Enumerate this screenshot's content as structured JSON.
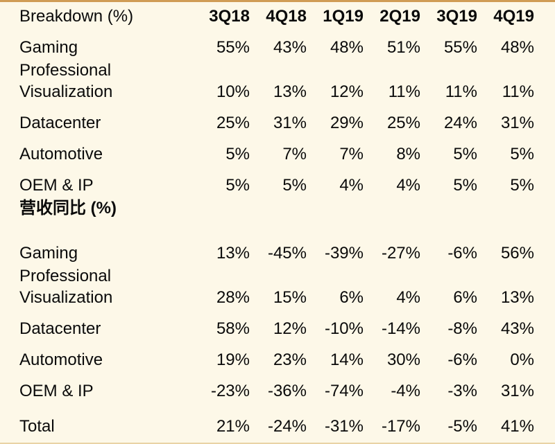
{
  "chart_data": {
    "type": "table",
    "title": "Breakdown (%)",
    "columns": [
      "3Q18",
      "4Q18",
      "1Q19",
      "2Q19",
      "3Q19",
      "4Q19"
    ],
    "sections": [
      {
        "header": "Breakdown (%)",
        "rows": [
          {
            "label": "Gaming",
            "values": [
              "55%",
              "43%",
              "48%",
              "51%",
              "55%",
              "48%"
            ]
          },
          {
            "label": "Professional Visualization",
            "label_lines": [
              "Professional",
              "Visualization"
            ],
            "values": [
              "10%",
              "13%",
              "12%",
              "11%",
              "11%",
              "11%"
            ]
          },
          {
            "label": "Datacenter",
            "values": [
              "25%",
              "31%",
              "29%",
              "25%",
              "24%",
              "31%"
            ]
          },
          {
            "label": "Automotive",
            "values": [
              "5%",
              "7%",
              "7%",
              "8%",
              "5%",
              "5%"
            ]
          },
          {
            "label": "OEM & IP",
            "values": [
              "5%",
              "5%",
              "4%",
              "4%",
              "5%",
              "5%"
            ]
          }
        ]
      },
      {
        "header": "营收同比 (%)",
        "rows": [
          {
            "label": "Gaming",
            "values": [
              "13%",
              "-45%",
              "-39%",
              "-27%",
              "-6%",
              "56%"
            ]
          },
          {
            "label": "Professional Visualization",
            "label_lines": [
              "Professional",
              "Visualization"
            ],
            "values": [
              "28%",
              "15%",
              "6%",
              "4%",
              "6%",
              "13%"
            ]
          },
          {
            "label": "Datacenter",
            "values": [
              "58%",
              "12%",
              "-10%",
              "-14%",
              "-8%",
              "43%"
            ]
          },
          {
            "label": "Automotive",
            "values": [
              "19%",
              "23%",
              "14%",
              "30%",
              "-6%",
              "0%"
            ]
          },
          {
            "label": "OEM & IP",
            "values": [
              "-23%",
              "-36%",
              "-74%",
              "-4%",
              "-3%",
              "31%"
            ]
          },
          {
            "label": "Total",
            "is_total": true,
            "values": [
              "21%",
              "-24%",
              "-31%",
              "-17%",
              "-5%",
              "41%"
            ]
          }
        ]
      }
    ],
    "colors": {
      "background": "#fdf8e8",
      "top_rule": "#d09c55",
      "bottom_rule": "#e9d3a5",
      "text": "#0a0a0a"
    }
  }
}
